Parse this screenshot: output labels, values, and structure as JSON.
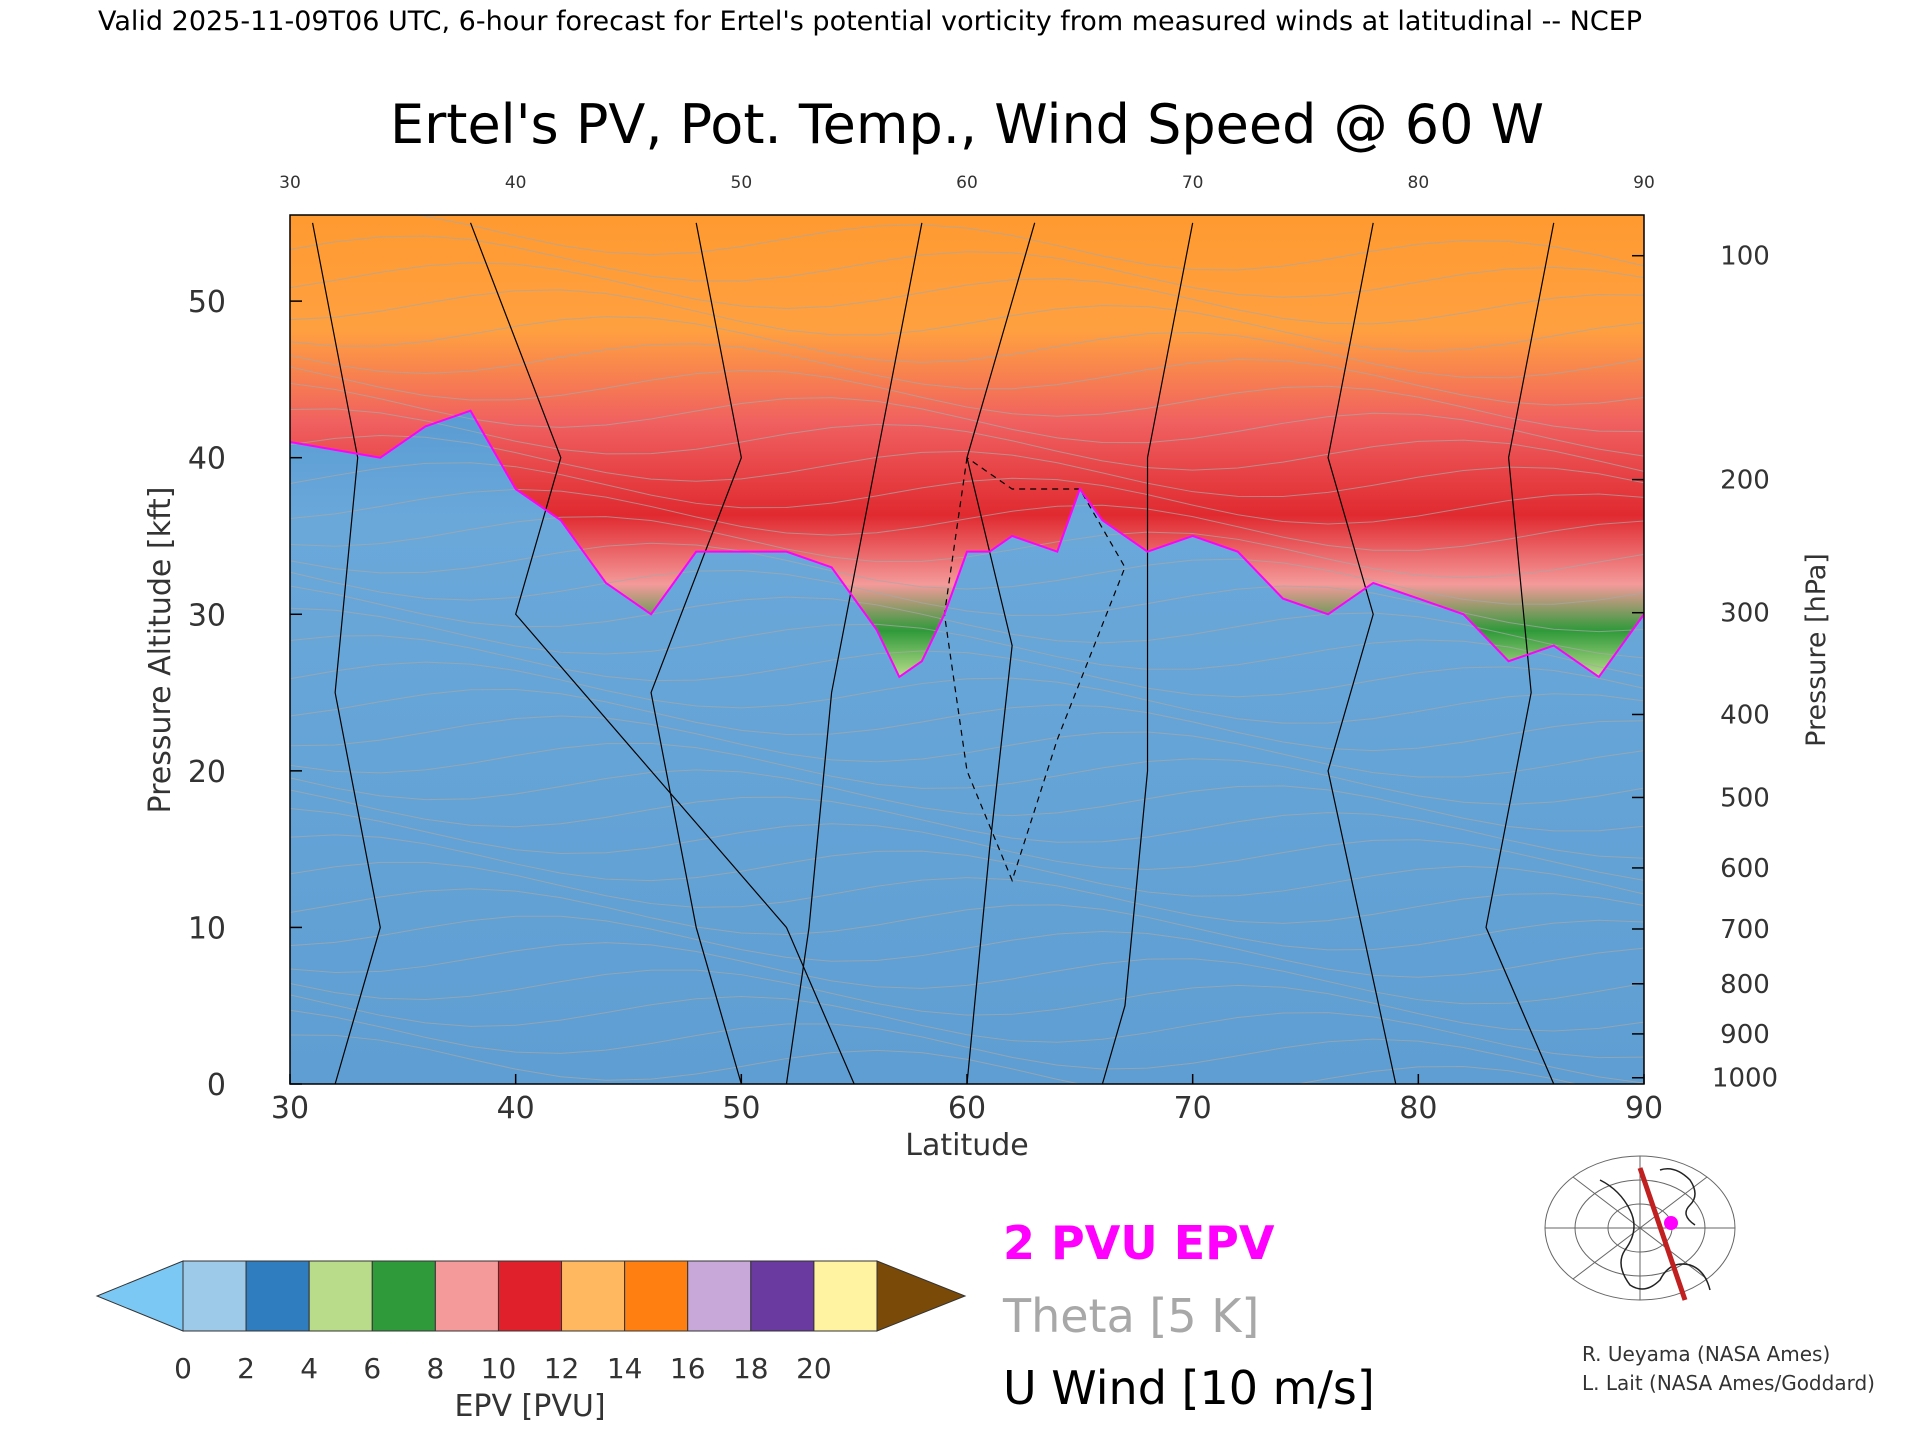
{
  "header_text": "Valid 2025-11-09T06 UTC, 6-hour forecast for Ertel's potential vorticity from measured winds at latitudinal -- NCEP",
  "chart_data": {
    "type": "heatmap",
    "title": "Ertel's PV, Pot. Temp., Wind Speed @ 60 W",
    "xlabel": "Latitude",
    "ylabel": "Pressure Altitude [kft]",
    "y2label": "Pressure [hPa]",
    "xlim": [
      30,
      90
    ],
    "ylim": [
      0,
      55.5
    ],
    "x_ticks": [
      30,
      40,
      50,
      60,
      70,
      80,
      90
    ],
    "y_ticks": [
      0,
      10,
      20,
      30,
      40,
      50
    ],
    "pressure_ticks": [
      {
        "hpa": "100",
        "kft": 52.9
      },
      {
        "hpa": "200",
        "kft": 38.6
      },
      {
        "hpa": "300",
        "kft": 30.1
      },
      {
        "hpa": "400",
        "kft": 23.6
      },
      {
        "hpa": "500",
        "kft": 18.3
      },
      {
        "hpa": "600",
        "kft": 13.8
      },
      {
        "hpa": "700",
        "kft": 9.9
      },
      {
        "hpa": "800",
        "kft": 6.4
      },
      {
        "hpa": "900",
        "kft": 3.2
      },
      {
        "hpa": "1000",
        "kft": 0.4
      }
    ],
    "tropopause_2pvu_kft": [
      {
        "lat": 30,
        "kft": 41
      },
      {
        "lat": 32,
        "kft": 40.5
      },
      {
        "lat": 34,
        "kft": 40
      },
      {
        "lat": 36,
        "kft": 42
      },
      {
        "lat": 38,
        "kft": 43
      },
      {
        "lat": 40,
        "kft": 38
      },
      {
        "lat": 42,
        "kft": 36
      },
      {
        "lat": 44,
        "kft": 32
      },
      {
        "lat": 46,
        "kft": 30
      },
      {
        "lat": 48,
        "kft": 34
      },
      {
        "lat": 50,
        "kft": 34
      },
      {
        "lat": 52,
        "kft": 34
      },
      {
        "lat": 54,
        "kft": 33
      },
      {
        "lat": 56,
        "kft": 29
      },
      {
        "lat": 57,
        "kft": 26
      },
      {
        "lat": 58,
        "kft": 27
      },
      {
        "lat": 59,
        "kft": 30
      },
      {
        "lat": 60,
        "kft": 34
      },
      {
        "lat": 61,
        "kft": 34
      },
      {
        "lat": 62,
        "kft": 35
      },
      {
        "lat": 64,
        "kft": 34
      },
      {
        "lat": 65,
        "kft": 38
      },
      {
        "lat": 66,
        "kft": 36
      },
      {
        "lat": 68,
        "kft": 34
      },
      {
        "lat": 70,
        "kft": 35
      },
      {
        "lat": 72,
        "kft": 34
      },
      {
        "lat": 74,
        "kft": 31
      },
      {
        "lat": 76,
        "kft": 30
      },
      {
        "lat": 78,
        "kft": 32
      },
      {
        "lat": 80,
        "kft": 31
      },
      {
        "lat": 82,
        "kft": 30
      },
      {
        "lat": 84,
        "kft": 27
      },
      {
        "lat": 86,
        "kft": 28
      },
      {
        "lat": 88,
        "kft": 26
      },
      {
        "lat": 90,
        "kft": 30
      }
    ],
    "epv_colorbar": {
      "label": "EPV [PVU]",
      "ticks": [
        "0",
        "2",
        "4",
        "6",
        "8",
        "10",
        "12",
        "14",
        "16",
        "18",
        "20"
      ],
      "colors": [
        "#9ecae9",
        "#2f7dbf",
        "#b8dc8a",
        "#2f9a3a",
        "#f49a9a",
        "#e0202a",
        "#ffb860",
        "#ff8010",
        "#c8a8d8",
        "#6a3aa0",
        "#fff2a0"
      ],
      "under_color": "#7cc8f4",
      "over_color": "#7a4a08"
    },
    "legend": [
      {
        "label": "2 PVU EPV",
        "color": "#ff00ff"
      },
      {
        "label": "Theta [5 K]",
        "color": "#a8a8a8"
      },
      {
        "label": "U Wind [10 m/s]",
        "color": "#000000"
      }
    ],
    "section_longitude": "60 W"
  },
  "credits": [
    "R. Ueyama (NASA Ames)",
    "L. Lait (NASA Ames/Goddard)"
  ],
  "colors": {
    "stratosphere_orange": "#ff9a30",
    "troposphere_blue": "#5f9fd2",
    "tropopause_magenta": "#ff00ff",
    "theta_gray": "#a8a8a8"
  }
}
